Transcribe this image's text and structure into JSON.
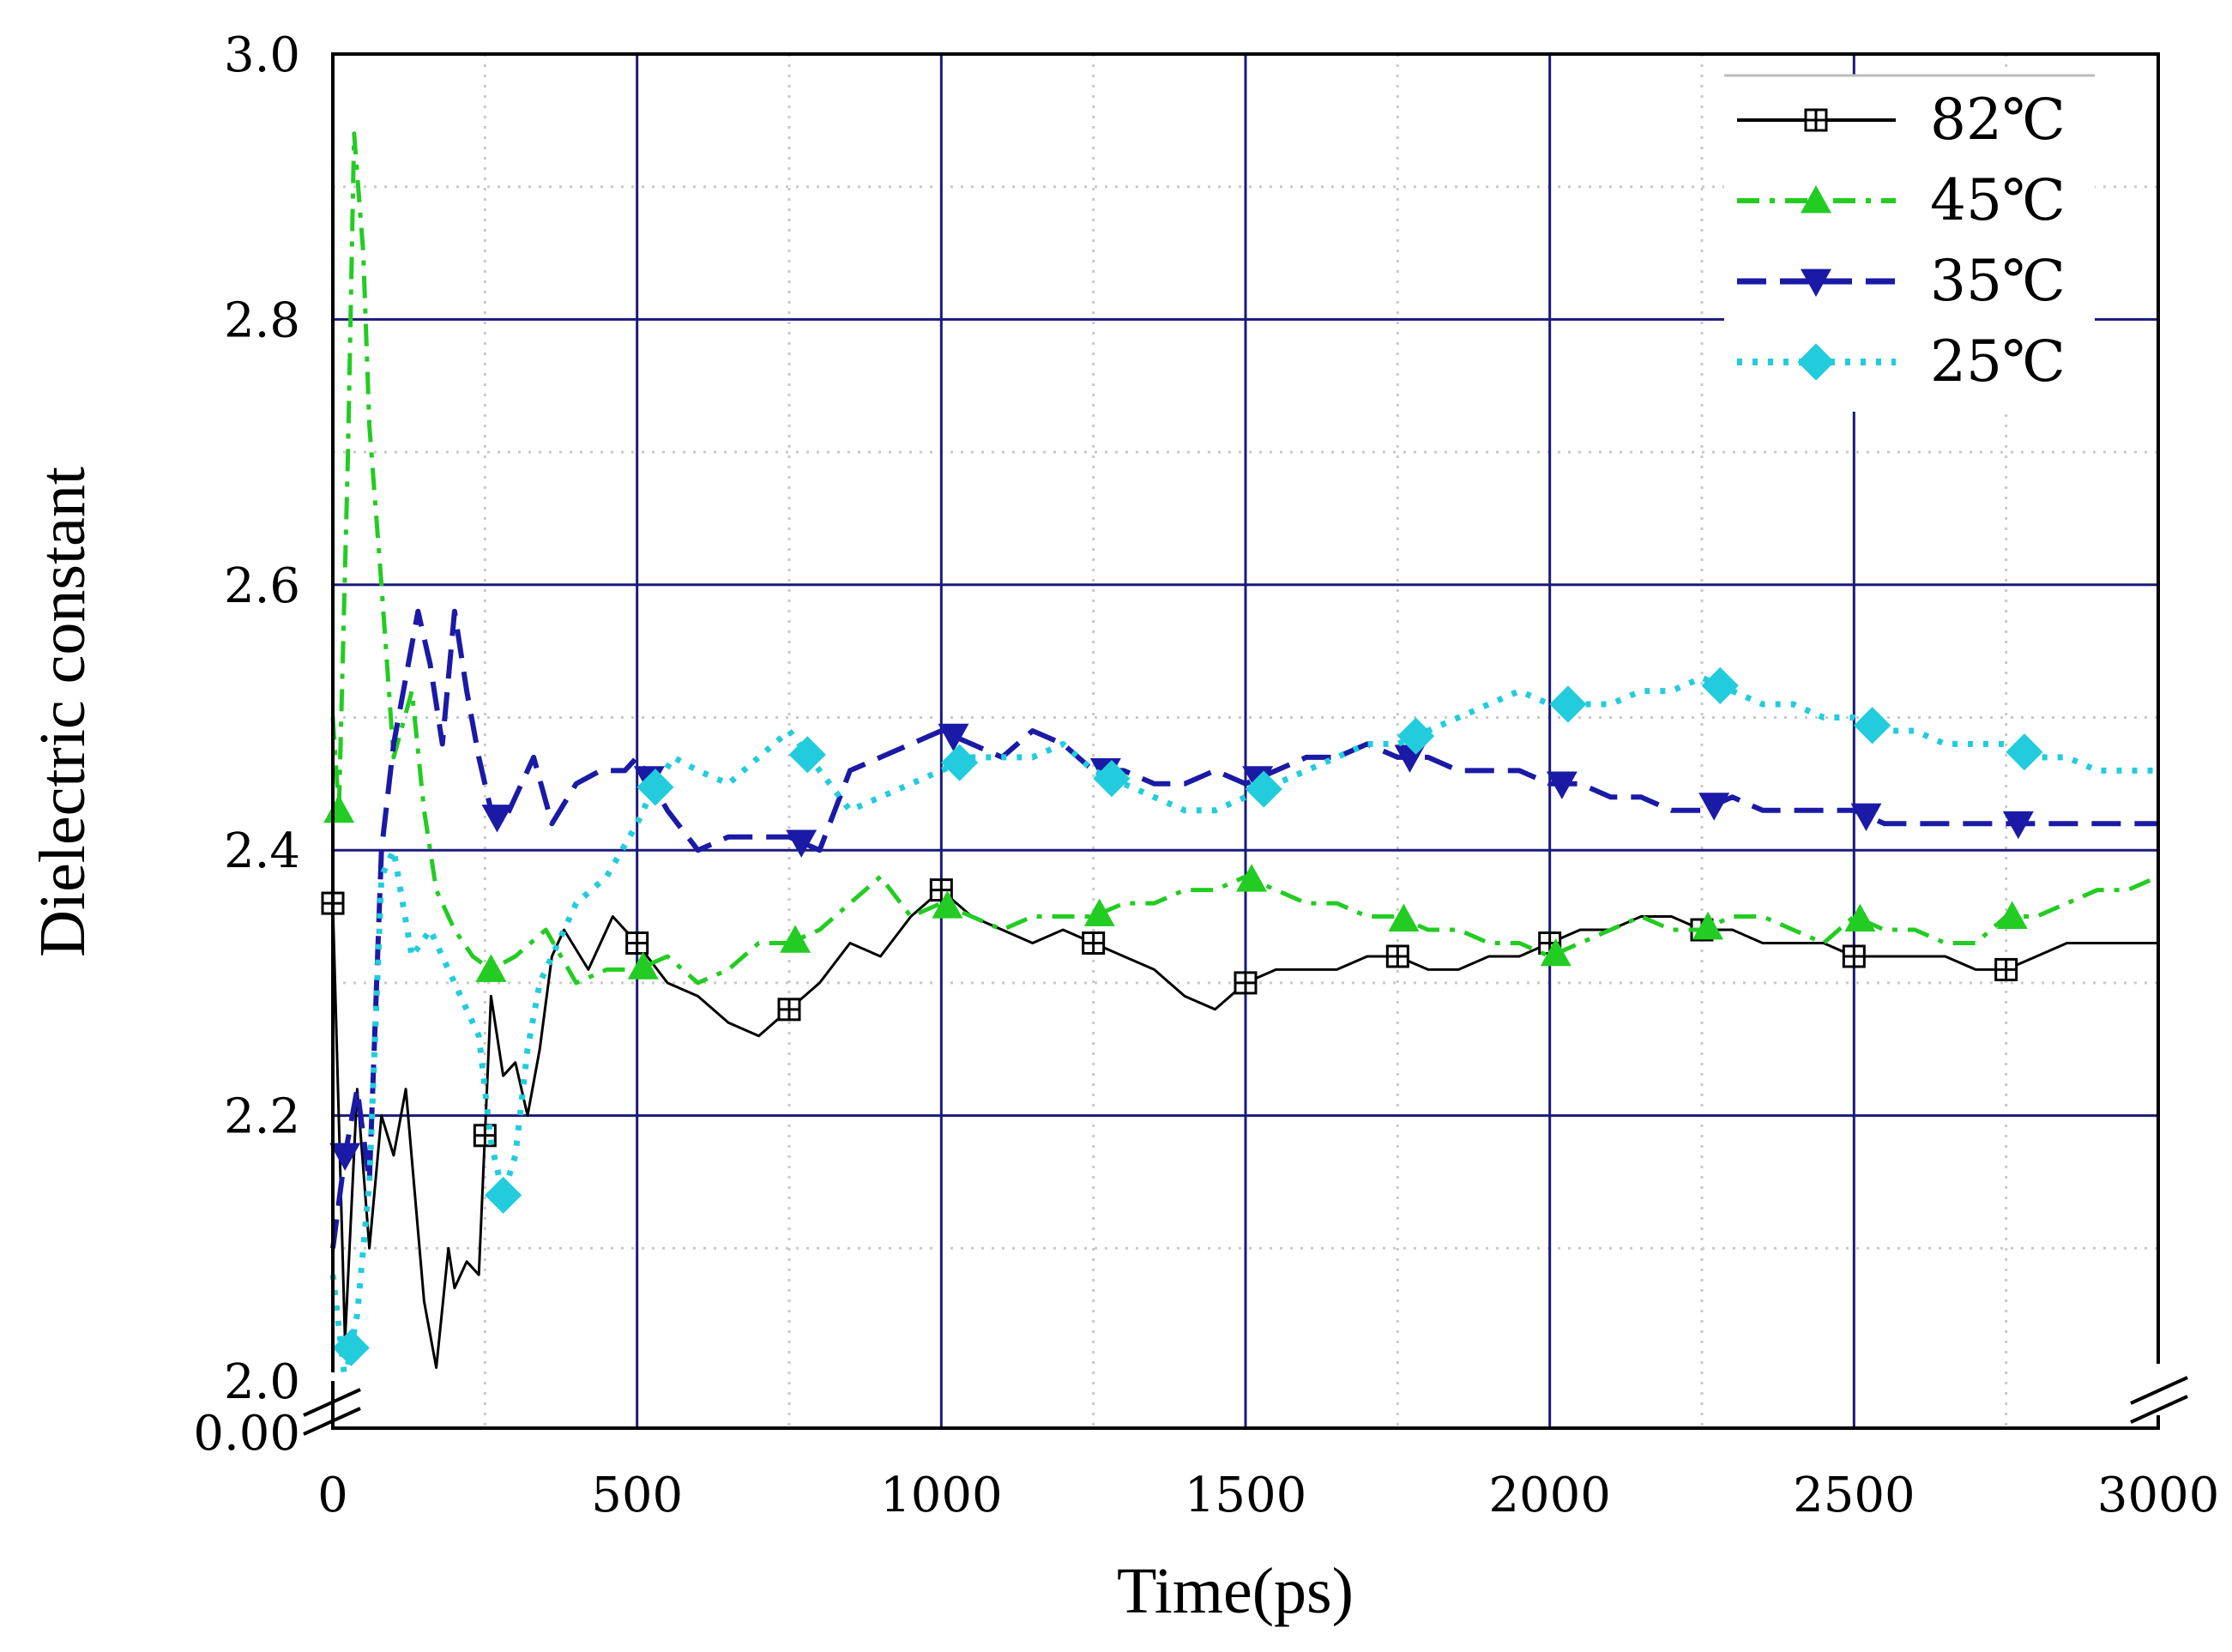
{
  "chart_data": {
    "type": "line",
    "title": "",
    "xlabel": "Time(ps)",
    "ylabel": "Dielectric constant",
    "xlim": [
      0,
      3000
    ],
    "ylim": [
      2.0,
      3.0
    ],
    "axis_break": {
      "lower_label": "0.00",
      "break_below": 2.0
    },
    "x_ticks": [
      {
        "value": 0,
        "label": "0"
      },
      {
        "value": 500,
        "label": "500"
      },
      {
        "value": 1000,
        "label": "1000"
      },
      {
        "value": 1500,
        "label": "1500"
      },
      {
        "value": 2000,
        "label": "2000"
      },
      {
        "value": 2500,
        "label": "2500"
      },
      {
        "value": 3000,
        "label": "3000"
      }
    ],
    "y_ticks": [
      {
        "value": 2.0,
        "label": "2.0"
      },
      {
        "value": 2.2,
        "label": "2.2"
      },
      {
        "value": 2.4,
        "label": "2.4"
      },
      {
        "value": 2.6,
        "label": "2.6"
      },
      {
        "value": 2.8,
        "label": "2.8"
      },
      {
        "value": 3.0,
        "label": "3.0"
      }
    ],
    "grid": true,
    "legend_position": "top-right",
    "series": [
      {
        "name": "82℃",
        "color": "#000000",
        "marker": "square-plus",
        "dash": "solid",
        "x": [
          0,
          20,
          40,
          60,
          80,
          100,
          120,
          150,
          170,
          190,
          200,
          220,
          240,
          260,
          280,
          300,
          320,
          340,
          360,
          380,
          420,
          460,
          500,
          550,
          600,
          650,
          700,
          750,
          800,
          850,
          900,
          950,
          1000,
          1050,
          1100,
          1150,
          1200,
          1250,
          1300,
          1350,
          1400,
          1450,
          1500,
          1550,
          1600,
          1650,
          1700,
          1750,
          1800,
          1850,
          1900,
          1950,
          2000,
          2050,
          2100,
          2150,
          2200,
          2250,
          2300,
          2350,
          2400,
          2450,
          2500,
          2550,
          2600,
          2650,
          2700,
          2750,
          2800,
          2850,
          2900,
          2950,
          3000
        ],
        "y": [
          2.36,
          2.03,
          2.22,
          2.1,
          2.2,
          2.17,
          2.22,
          2.06,
          2.01,
          2.1,
          2.07,
          2.09,
          2.08,
          2.29,
          2.23,
          2.24,
          2.2,
          2.25,
          2.32,
          2.34,
          2.31,
          2.35,
          2.33,
          2.3,
          2.29,
          2.27,
          2.26,
          2.28,
          2.3,
          2.33,
          2.32,
          2.35,
          2.37,
          2.35,
          2.34,
          2.33,
          2.34,
          2.33,
          2.32,
          2.31,
          2.29,
          2.28,
          2.3,
          2.31,
          2.31,
          2.31,
          2.32,
          2.32,
          2.31,
          2.31,
          2.32,
          2.32,
          2.33,
          2.34,
          2.34,
          2.35,
          2.35,
          2.34,
          2.34,
          2.33,
          2.33,
          2.33,
          2.32,
          2.32,
          2.32,
          2.32,
          2.31,
          2.31,
          2.32,
          2.33,
          2.33,
          2.33,
          2.33
        ]
      },
      {
        "name": "45℃",
        "color": "#22cc22",
        "marker": "triangle-up",
        "dash": "dash-dot",
        "x": [
          0,
          10,
          25,
          35,
          50,
          60,
          80,
          100,
          130,
          150,
          170,
          200,
          230,
          260,
          300,
          350,
          400,
          450,
          500,
          550,
          600,
          650,
          700,
          750,
          800,
          850,
          900,
          950,
          1000,
          1050,
          1100,
          1150,
          1200,
          1250,
          1300,
          1350,
          1400,
          1450,
          1500,
          1550,
          1600,
          1650,
          1700,
          1750,
          1800,
          1850,
          1900,
          1950,
          2000,
          2050,
          2100,
          2150,
          2200,
          2250,
          2300,
          2350,
          2400,
          2450,
          2500,
          2550,
          2600,
          2650,
          2700,
          2750,
          2800,
          2850,
          2900,
          2950,
          3000
        ],
        "y": [
          2.5,
          2.43,
          2.7,
          2.94,
          2.85,
          2.72,
          2.6,
          2.47,
          2.52,
          2.43,
          2.37,
          2.34,
          2.32,
          2.31,
          2.32,
          2.34,
          2.3,
          2.31,
          2.31,
          2.32,
          2.3,
          2.31,
          2.33,
          2.33,
          2.34,
          2.36,
          2.38,
          2.35,
          2.36,
          2.35,
          2.34,
          2.35,
          2.35,
          2.35,
          2.36,
          2.36,
          2.37,
          2.37,
          2.38,
          2.37,
          2.36,
          2.36,
          2.35,
          2.35,
          2.34,
          2.34,
          2.33,
          2.33,
          2.32,
          2.33,
          2.34,
          2.35,
          2.34,
          2.34,
          2.35,
          2.35,
          2.34,
          2.33,
          2.35,
          2.34,
          2.34,
          2.33,
          2.33,
          2.35,
          2.35,
          2.36,
          2.37,
          2.37,
          2.38
        ]
      },
      {
        "name": "35℃",
        "color": "#1a1aa6",
        "marker": "triangle-down",
        "dash": "long-dash",
        "x": [
          0,
          20,
          40,
          60,
          80,
          100,
          120,
          140,
          160,
          180,
          200,
          220,
          240,
          260,
          280,
          300,
          330,
          360,
          400,
          440,
          480,
          500,
          550,
          600,
          650,
          700,
          750,
          800,
          850,
          900,
          950,
          1000,
          1050,
          1100,
          1150,
          1200,
          1250,
          1300,
          1350,
          1400,
          1450,
          1500,
          1550,
          1600,
          1650,
          1700,
          1750,
          1800,
          1850,
          1900,
          1950,
          2000,
          2050,
          2100,
          2150,
          2200,
          2250,
          2300,
          2350,
          2400,
          2450,
          2500,
          2550,
          2600,
          2650,
          2700,
          2750,
          2800,
          2850,
          2900,
          2950,
          3000
        ],
        "y": [
          2.1,
          2.17,
          2.22,
          2.15,
          2.4,
          2.48,
          2.53,
          2.58,
          2.54,
          2.48,
          2.58,
          2.52,
          2.47,
          2.43,
          2.42,
          2.44,
          2.47,
          2.42,
          2.45,
          2.46,
          2.46,
          2.47,
          2.43,
          2.4,
          2.41,
          2.41,
          2.41,
          2.4,
          2.46,
          2.47,
          2.48,
          2.49,
          2.48,
          2.47,
          2.49,
          2.48,
          2.46,
          2.46,
          2.45,
          2.45,
          2.46,
          2.45,
          2.46,
          2.47,
          2.47,
          2.48,
          2.47,
          2.47,
          2.46,
          2.46,
          2.46,
          2.45,
          2.45,
          2.44,
          2.44,
          2.43,
          2.43,
          2.44,
          2.43,
          2.43,
          2.43,
          2.43,
          2.42,
          2.42,
          2.42,
          2.42,
          2.42,
          2.42,
          2.42,
          2.42,
          2.42,
          2.42
        ]
      },
      {
        "name": "25℃",
        "color": "#22ccdd",
        "marker": "diamond",
        "dash": "dot",
        "x": [
          0,
          20,
          40,
          60,
          80,
          100,
          130,
          160,
          200,
          240,
          260,
          280,
          300,
          320,
          340,
          360,
          400,
          450,
          500,
          520,
          560,
          600,
          650,
          700,
          750,
          800,
          850,
          900,
          950,
          1000,
          1050,
          1100,
          1150,
          1200,
          1250,
          1300,
          1350,
          1400,
          1450,
          1500,
          1550,
          1600,
          1650,
          1700,
          1750,
          1800,
          1850,
          1900,
          1950,
          2000,
          2050,
          2100,
          2150,
          2200,
          2250,
          2300,
          2350,
          2400,
          2450,
          2500,
          2550,
          2600,
          2650,
          2700,
          2750,
          2800,
          2850,
          2900,
          2950,
          3000
        ],
        "y": [
          2.08,
          2.0,
          2.05,
          2.15,
          2.38,
          2.4,
          2.32,
          2.34,
          2.3,
          2.26,
          2.18,
          2.14,
          2.17,
          2.25,
          2.3,
          2.32,
          2.36,
          2.38,
          2.42,
          2.44,
          2.47,
          2.46,
          2.45,
          2.47,
          2.49,
          2.46,
          2.43,
          2.44,
          2.45,
          2.46,
          2.47,
          2.47,
          2.47,
          2.48,
          2.46,
          2.45,
          2.44,
          2.43,
          2.43,
          2.44,
          2.45,
          2.46,
          2.47,
          2.48,
          2.48,
          2.49,
          2.5,
          2.51,
          2.52,
          2.51,
          2.51,
          2.51,
          2.52,
          2.52,
          2.53,
          2.52,
          2.51,
          2.51,
          2.5,
          2.5,
          2.49,
          2.49,
          2.48,
          2.48,
          2.48,
          2.47,
          2.47,
          2.46,
          2.46,
          2.46
        ]
      }
    ]
  }
}
